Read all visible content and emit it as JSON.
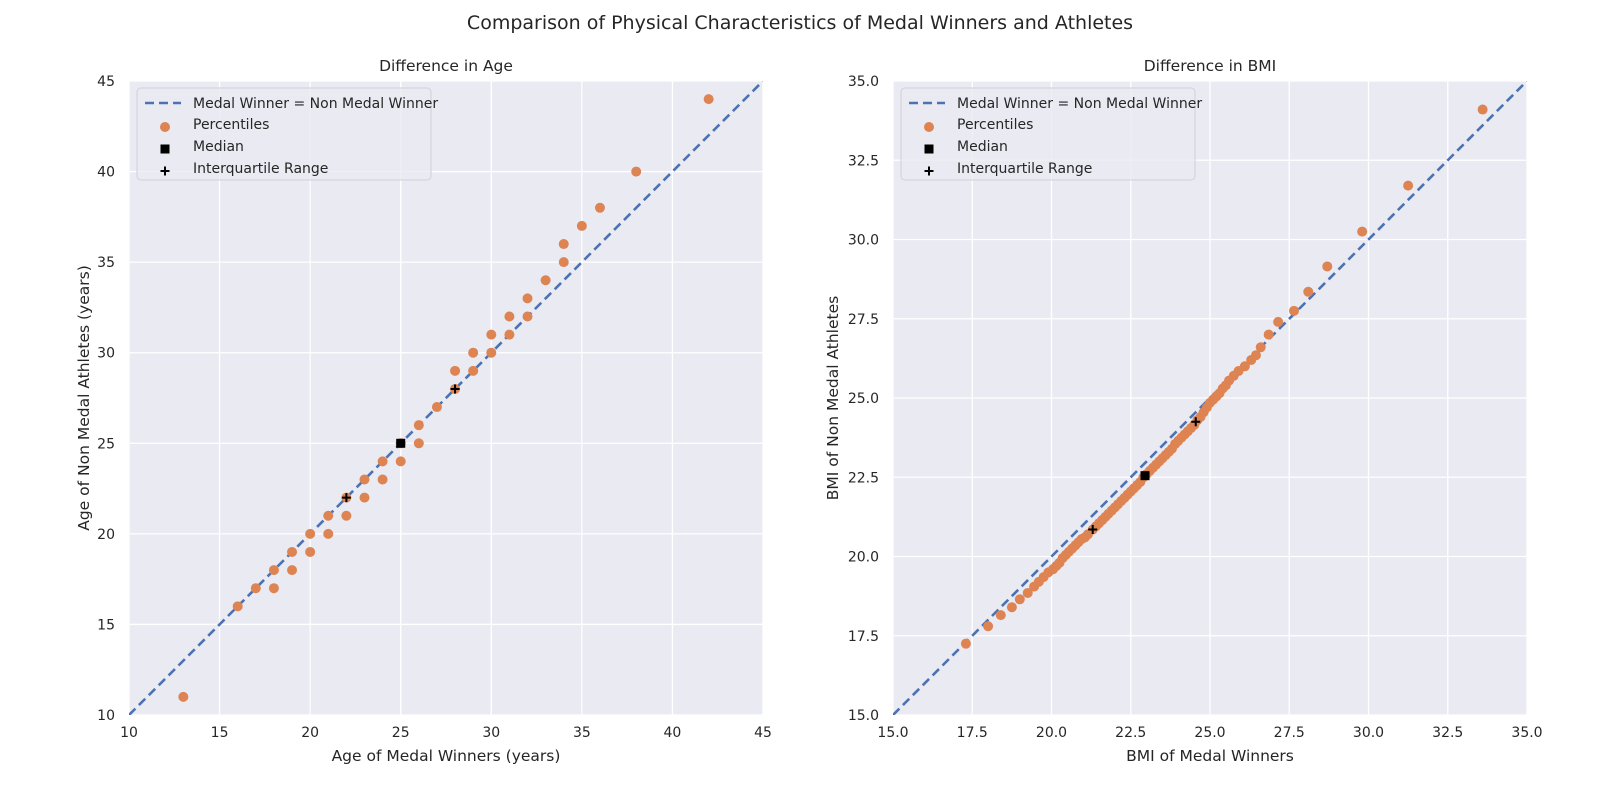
{
  "figure": {
    "suptitle": "Comparison of Physical Characteristics of Medal Winners and Athletes"
  },
  "colors": {
    "background": "#eaeaf2",
    "grid": "#ffffff",
    "line": "#4c72b0",
    "points": "#dd8452",
    "marker": "#000000"
  },
  "chart_data": [
    {
      "type": "scatter",
      "title": "Difference in Age",
      "xlabel": "Age of Medal Winners (years)",
      "ylabel": "Age of Non Medal Athletes (years)",
      "xlim": [
        10,
        45
      ],
      "ylim": [
        10,
        45
      ],
      "xticks": [
        "10",
        "15",
        "20",
        "25",
        "30",
        "35",
        "40",
        "45"
      ],
      "yticks": [
        "10",
        "15",
        "20",
        "25",
        "30",
        "35",
        "40",
        "45"
      ],
      "grid": true,
      "legend_position": "top-left",
      "legend": [
        "Medal Winner = Non Medal Winner",
        "Percentiles",
        "Median",
        "Interquartile Range"
      ],
      "series": [
        {
          "name": "Percentiles",
          "points": [
            [
              13,
              11
            ],
            [
              16,
              16
            ],
            [
              17,
              17
            ],
            [
              18,
              17
            ],
            [
              18,
              18
            ],
            [
              19,
              18
            ],
            [
              19,
              19
            ],
            [
              20,
              19
            ],
            [
              20,
              20
            ],
            [
              21,
              20
            ],
            [
              21,
              21
            ],
            [
              22,
              21
            ],
            [
              22,
              22
            ],
            [
              23,
              22
            ],
            [
              23,
              23
            ],
            [
              24,
              23
            ],
            [
              24,
              24
            ],
            [
              25,
              24
            ],
            [
              25,
              25
            ],
            [
              26,
              25
            ],
            [
              26,
              26
            ],
            [
              27,
              27
            ],
            [
              28,
              28
            ],
            [
              28,
              29
            ],
            [
              29,
              29
            ],
            [
              29,
              30
            ],
            [
              30,
              30
            ],
            [
              30,
              31
            ],
            [
              31,
              31
            ],
            [
              31,
              32
            ],
            [
              32,
              32
            ],
            [
              32,
              33
            ],
            [
              33,
              34
            ],
            [
              34,
              35
            ],
            [
              34,
              36
            ],
            [
              35,
              37
            ],
            [
              36,
              38
            ],
            [
              38,
              40
            ],
            [
              42,
              44
            ]
          ]
        },
        {
          "name": "Median",
          "points": [
            [
              25,
              25
            ]
          ]
        },
        {
          "name": "Interquartile Range",
          "points": [
            [
              22,
              22
            ],
            [
              28,
              28
            ]
          ]
        }
      ]
    },
    {
      "type": "scatter",
      "title": "Difference in BMI",
      "xlabel": "BMI of Medal Winners",
      "ylabel": "BMI of Non Medal Athletes",
      "xlim": [
        15,
        35
      ],
      "ylim": [
        15,
        35
      ],
      "xticks": [
        "15.0",
        "17.5",
        "20.0",
        "22.5",
        "25.0",
        "27.5",
        "30.0",
        "32.5",
        "35.0"
      ],
      "yticks": [
        "15.0",
        "17.5",
        "20.0",
        "22.5",
        "25.0",
        "27.5",
        "30.0",
        "32.5",
        "35.0"
      ],
      "grid": true,
      "legend_position": "top-left",
      "legend": [
        "Medal Winner = Non Medal Winner",
        "Percentiles",
        "Median",
        "Interquartile Range"
      ],
      "series": [
        {
          "name": "Percentiles",
          "points": [
            [
              17.3,
              17.25
            ],
            [
              18.0,
              17.8
            ],
            [
              18.4,
              18.15
            ],
            [
              18.75,
              18.4
            ],
            [
              19.0,
              18.65
            ],
            [
              19.25,
              18.85
            ],
            [
              19.45,
              19.05
            ],
            [
              19.6,
              19.2
            ],
            [
              19.75,
              19.35
            ],
            [
              19.9,
              19.5
            ],
            [
              20.05,
              19.6
            ],
            [
              20.15,
              19.7
            ],
            [
              20.25,
              19.8
            ],
            [
              20.35,
              19.95
            ],
            [
              20.45,
              20.05
            ],
            [
              20.55,
              20.15
            ],
            [
              20.65,
              20.25
            ],
            [
              20.75,
              20.35
            ],
            [
              20.85,
              20.45
            ],
            [
              20.95,
              20.55
            ],
            [
              21.05,
              20.6
            ],
            [
              21.15,
              20.7
            ],
            [
              21.3,
              20.85
            ],
            [
              21.4,
              20.95
            ],
            [
              21.5,
              21.05
            ],
            [
              21.6,
              21.15
            ],
            [
              21.7,
              21.25
            ],
            [
              21.8,
              21.35
            ],
            [
              21.9,
              21.45
            ],
            [
              22.0,
              21.55
            ],
            [
              22.1,
              21.65
            ],
            [
              22.2,
              21.75
            ],
            [
              22.3,
              21.85
            ],
            [
              22.4,
              21.95
            ],
            [
              22.5,
              22.05
            ],
            [
              22.6,
              22.15
            ],
            [
              22.7,
              22.25
            ],
            [
              22.8,
              22.35
            ],
            [
              22.9,
              22.5
            ],
            [
              23.0,
              22.6
            ],
            [
              23.1,
              22.7
            ],
            [
              23.2,
              22.8
            ],
            [
              23.3,
              22.9
            ],
            [
              23.4,
              23.0
            ],
            [
              23.5,
              23.1
            ],
            [
              23.6,
              23.2
            ],
            [
              23.7,
              23.3
            ],
            [
              23.8,
              23.4
            ],
            [
              23.9,
              23.55
            ],
            [
              24.0,
              23.65
            ],
            [
              24.1,
              23.75
            ],
            [
              24.2,
              23.85
            ],
            [
              24.3,
              23.95
            ],
            [
              24.4,
              24.05
            ],
            [
              24.5,
              24.15
            ],
            [
              24.6,
              24.3
            ],
            [
              24.7,
              24.4
            ],
            [
              24.8,
              24.55
            ],
            [
              24.9,
              24.7
            ],
            [
              25.0,
              24.85
            ],
            [
              25.1,
              24.95
            ],
            [
              25.2,
              25.05
            ],
            [
              25.3,
              25.15
            ],
            [
              25.4,
              25.3
            ],
            [
              25.5,
              25.4
            ],
            [
              25.6,
              25.55
            ],
            [
              25.75,
              25.7
            ],
            [
              25.9,
              25.85
            ],
            [
              26.1,
              26.0
            ],
            [
              26.3,
              26.2
            ],
            [
              26.45,
              26.35
            ],
            [
              26.6,
              26.6
            ],
            [
              26.85,
              27.0
            ],
            [
              27.15,
              27.4
            ],
            [
              27.65,
              27.75
            ],
            [
              28.1,
              28.35
            ],
            [
              28.7,
              29.15
            ],
            [
              29.8,
              30.25
            ],
            [
              31.25,
              31.7
            ],
            [
              33.6,
              34.1
            ]
          ]
        },
        {
          "name": "Median",
          "points": [
            [
              22.95,
              22.55
            ]
          ]
        },
        {
          "name": "Interquartile Range",
          "points": [
            [
              21.3,
              20.85
            ],
            [
              24.55,
              24.25
            ]
          ]
        }
      ]
    }
  ]
}
